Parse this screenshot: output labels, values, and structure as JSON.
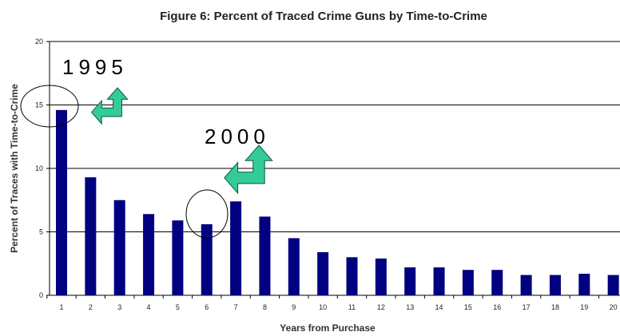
{
  "chart_data": {
    "type": "bar",
    "title": "Figure 6: Percent of Traced Crime Guns by Time-to-Crime",
    "xlabel": "Years from Purchase",
    "ylabel": "Percent of Traces with Time-to-Crime",
    "categories": [
      "1",
      "2",
      "3",
      "4",
      "5",
      "6",
      "7",
      "8",
      "9",
      "10",
      "11",
      "12",
      "13",
      "14",
      "15",
      "16",
      "17",
      "18",
      "19",
      "20"
    ],
    "series": [
      {
        "values": [
          14.6,
          9.3,
          7.5,
          6.4,
          5.9,
          5.6,
          7.4,
          6.2,
          4.5,
          3.4,
          3.0,
          2.9,
          2.2,
          2.2,
          2.0,
          2.0,
          1.6,
          1.6,
          1.7,
          1.6
        ]
      }
    ],
    "ylim": [
      0,
      20
    ],
    "yticks": [
      "0",
      "5",
      "10",
      "15",
      "20"
    ],
    "grid": true,
    "bar_color": "#000080",
    "annotations": [
      {
        "text": "1995",
        "category": "1"
      },
      {
        "text": "2000",
        "category": "6"
      }
    ],
    "arrow_color": "#33cc99"
  }
}
